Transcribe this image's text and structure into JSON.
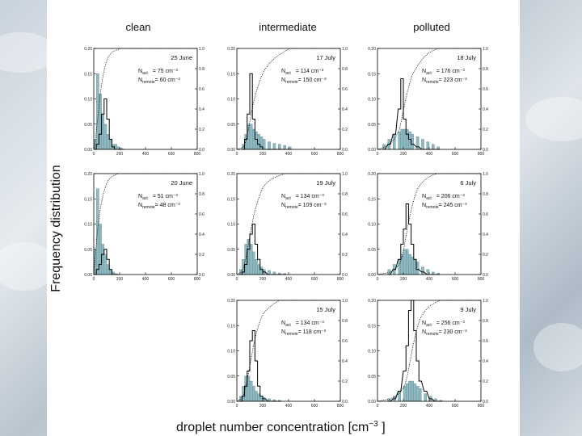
{
  "figure": {
    "y_axis_title": "Frequency distribution",
    "x_axis_title": "droplet number concentration [cm",
    "x_axis_title_exp": "−3",
    "x_axis_title_close": " ]",
    "column_titles": [
      "clean",
      "intermediate",
      "polluted"
    ]
  },
  "chart_data": [
    {
      "type": "bar",
      "panel": "clean-row1",
      "date": "25 June",
      "n_act": "= 75 cm⁻³",
      "n_remote": "= 60 cm⁻³",
      "x": [
        0,
        20,
        40,
        60,
        80,
        100,
        120,
        140,
        160,
        180,
        200,
        220
      ],
      "series": [
        {
          "name": "remote (shaded)",
          "values": [
            0.02,
            0.15,
            0.11,
            0.07,
            0.05,
            0.03,
            0.02,
            0.01,
            0.01,
            0.005,
            0.003,
            0.0
          ]
        },
        {
          "name": "activated (outline)",
          "values": [
            0.0,
            0.01,
            0.03,
            0.07,
            0.1,
            0.06,
            0.02,
            0.005,
            0.0,
            0.0,
            0.0,
            0.0
          ]
        },
        {
          "name": "cumulative",
          "values": [
            0.05,
            0.3,
            0.55,
            0.72,
            0.84,
            0.91,
            0.95,
            0.97,
            0.98,
            0.99,
            1.0,
            1.0
          ]
        }
      ],
      "xlim": [
        0,
        800
      ],
      "ylim": [
        0,
        0.2
      ],
      "y2lim": [
        0,
        1.0
      ],
      "xticks": [
        "0",
        "200",
        "400",
        "600",
        "800"
      ],
      "yticks": [
        "0.00",
        "0.05",
        "0.10",
        "0.15",
        "0.20"
      ],
      "y2ticks": [
        "0.0",
        "0.2",
        "0.4",
        "0.6",
        "0.8",
        "1.0"
      ]
    },
    {
      "type": "bar",
      "panel": "intermediate-row1",
      "date": "17 July",
      "n_act": "= 114 cm⁻³",
      "n_remote": "= 150 cm⁻³",
      "x": [
        40,
        60,
        80,
        100,
        120,
        140,
        160,
        180,
        200,
        240,
        280,
        320,
        360,
        400
      ],
      "series": [
        {
          "name": "remote (shaded)",
          "values": [
            0.01,
            0.03,
            0.05,
            0.05,
            0.04,
            0.035,
            0.03,
            0.025,
            0.02,
            0.015,
            0.012,
            0.01,
            0.008,
            0.005
          ]
        },
        {
          "name": "activated (outline)",
          "values": [
            0.0,
            0.02,
            0.07,
            0.15,
            0.06,
            0.02,
            0.01,
            0.005,
            0.0,
            0.0,
            0.0,
            0.0,
            0.0,
            0.0
          ]
        },
        {
          "name": "cumulative",
          "values": [
            0.02,
            0.08,
            0.2,
            0.35,
            0.47,
            0.57,
            0.65,
            0.72,
            0.78,
            0.85,
            0.9,
            0.94,
            0.97,
            1.0
          ]
        }
      ],
      "xlim": [
        0,
        800
      ],
      "ylim": [
        0,
        0.2
      ],
      "y2lim": [
        0,
        1.0
      ],
      "xticks": [
        "0",
        "200",
        "400",
        "600",
        "800"
      ],
      "yticks": [
        "0.00",
        "0.05",
        "0.10",
        "0.15",
        "0.20"
      ],
      "y2ticks": [
        "0.0",
        "0.2",
        "0.4",
        "0.6",
        "0.8",
        "1.0"
      ]
    },
    {
      "type": "bar",
      "panel": "polluted-row1",
      "date": "18 July",
      "n_act": "= 176 cm⁻³",
      "n_remote": "= 223 cm⁻³",
      "x": [
        40,
        80,
        120,
        160,
        180,
        200,
        220,
        240,
        260,
        300,
        340,
        380,
        420,
        460
      ],
      "series": [
        {
          "name": "remote (shaded)",
          "values": [
            0.01,
            0.02,
            0.03,
            0.035,
            0.04,
            0.04,
            0.04,
            0.035,
            0.03,
            0.025,
            0.02,
            0.015,
            0.01,
            0.005
          ]
        },
        {
          "name": "activated (outline)",
          "values": [
            0.0,
            0.01,
            0.03,
            0.08,
            0.14,
            0.06,
            0.03,
            0.02,
            0.01,
            0.005,
            0.0,
            0.0,
            0.0,
            0.0
          ]
        },
        {
          "name": "cumulative",
          "values": [
            0.02,
            0.05,
            0.1,
            0.2,
            0.32,
            0.45,
            0.56,
            0.66,
            0.74,
            0.83,
            0.9,
            0.95,
            0.98,
            1.0
          ]
        }
      ],
      "xlim": [
        0,
        800
      ],
      "ylim": [
        0,
        0.2
      ],
      "y2lim": [
        0,
        1.0
      ],
      "xticks": [
        "0",
        "200",
        "400",
        "600",
        "800"
      ],
      "yticks": [
        "0.00",
        "0.05",
        "0.10",
        "0.15",
        "0.20"
      ],
      "y2ticks": [
        "0.0",
        "0.2",
        "0.4",
        "0.6",
        "0.8",
        "1.0"
      ]
    },
    {
      "type": "bar",
      "panel": "clean-row2",
      "date": "20 June",
      "n_act": "= 51 cm⁻³",
      "n_remote": "= 48 cm⁻³",
      "x": [
        0,
        20,
        40,
        60,
        80,
        100,
        120,
        140,
        160,
        180
      ],
      "series": [
        {
          "name": "remote (shaded)",
          "values": [
            0.05,
            0.17,
            0.1,
            0.06,
            0.04,
            0.02,
            0.01,
            0.005,
            0.002,
            0.0
          ]
        },
        {
          "name": "activated (outline)",
          "values": [
            0.0,
            0.01,
            0.02,
            0.04,
            0.05,
            0.03,
            0.01,
            0.0,
            0.0,
            0.0
          ]
        },
        {
          "name": "cumulative",
          "values": [
            0.15,
            0.45,
            0.65,
            0.78,
            0.87,
            0.93,
            0.96,
            0.98,
            0.99,
            1.0
          ]
        }
      ],
      "xlim": [
        0,
        800
      ],
      "ylim": [
        0,
        0.2
      ],
      "y2lim": [
        0,
        1.0
      ],
      "xticks": [
        "0",
        "200",
        "400",
        "600",
        "800"
      ],
      "yticks": [
        "0.00",
        "0.05",
        "0.10",
        "0.15",
        "0.20"
      ],
      "y2ticks": [
        "0.0",
        "0.2",
        "0.4",
        "0.6",
        "0.8",
        "1.0"
      ]
    },
    {
      "type": "bar",
      "panel": "intermediate-row2",
      "date": "19 July",
      "n_act": "= 134 cm⁻³",
      "n_remote": "= 109 cm⁻³",
      "x": [
        20,
        40,
        60,
        80,
        100,
        120,
        140,
        160,
        180,
        200,
        240,
        280,
        320,
        360
      ],
      "series": [
        {
          "name": "remote (shaded)",
          "values": [
            0.01,
            0.03,
            0.06,
            0.07,
            0.06,
            0.045,
            0.03,
            0.02,
            0.015,
            0.01,
            0.008,
            0.005,
            0.003,
            0.002
          ]
        },
        {
          "name": "activated (outline)",
          "values": [
            0.0,
            0.005,
            0.02,
            0.05,
            0.08,
            0.1,
            0.06,
            0.03,
            0.01,
            0.005,
            0.0,
            0.0,
            0.0,
            0.0
          ]
        },
        {
          "name": "cumulative",
          "values": [
            0.02,
            0.06,
            0.16,
            0.3,
            0.45,
            0.58,
            0.68,
            0.76,
            0.83,
            0.88,
            0.93,
            0.96,
            0.98,
            1.0
          ]
        }
      ],
      "xlim": [
        0,
        800
      ],
      "ylim": [
        0,
        0.2
      ],
      "y2lim": [
        0,
        1.0
      ],
      "xticks": [
        "0",
        "200",
        "400",
        "600",
        "800"
      ],
      "yticks": [
        "0.00",
        "0.05",
        "0.10",
        "0.15",
        "0.20"
      ],
      "y2ticks": [
        "0.0",
        "0.2",
        "0.4",
        "0.6",
        "0.8",
        "1.0"
      ]
    },
    {
      "type": "bar",
      "panel": "polluted-row2",
      "date": "6 July",
      "n_act": "= 206 cm⁻³",
      "n_remote": "= 245 cm⁻³",
      "x": [
        80,
        120,
        160,
        180,
        200,
        220,
        240,
        260,
        280,
        300,
        340,
        380,
        420,
        460
      ],
      "series": [
        {
          "name": "remote (shaded)",
          "values": [
            0.01,
            0.02,
            0.03,
            0.04,
            0.05,
            0.05,
            0.04,
            0.035,
            0.03,
            0.025,
            0.015,
            0.01,
            0.005,
            0.003
          ]
        },
        {
          "name": "activated (outline)",
          "values": [
            0.0,
            0.01,
            0.03,
            0.06,
            0.09,
            0.14,
            0.1,
            0.06,
            0.03,
            0.01,
            0.005,
            0.0,
            0.0,
            0.0
          ]
        },
        {
          "name": "cumulative",
          "values": [
            0.02,
            0.05,
            0.1,
            0.18,
            0.3,
            0.45,
            0.58,
            0.69,
            0.78,
            0.85,
            0.92,
            0.96,
            0.99,
            1.0
          ]
        }
      ],
      "xlim": [
        0,
        800
      ],
      "ylim": [
        0,
        0.2
      ],
      "y2lim": [
        0,
        1.0
      ],
      "xticks": [
        "0",
        "200",
        "400",
        "600",
        "800"
      ],
      "yticks": [
        "0.00",
        "0.05",
        "0.10",
        "0.15",
        "0.20"
      ],
      "y2ticks": [
        "0.0",
        "0.2",
        "0.4",
        "0.6",
        "0.8",
        "1.0"
      ]
    },
    {
      "type": "bar",
      "panel": "intermediate-row3",
      "date": "15 July",
      "n_act": "= 134 cm⁻³",
      "n_remote": "= 118 cm⁻³",
      "x": [
        20,
        40,
        60,
        80,
        100,
        120,
        140,
        160,
        180,
        200,
        240,
        280,
        320
      ],
      "series": [
        {
          "name": "remote (shaded)",
          "values": [
            0.01,
            0.03,
            0.05,
            0.05,
            0.04,
            0.03,
            0.02,
            0.015,
            0.01,
            0.008,
            0.005,
            0.003,
            0.002
          ]
        },
        {
          "name": "activated (outline)",
          "values": [
            0.0,
            0.01,
            0.03,
            0.06,
            0.12,
            0.14,
            0.08,
            0.03,
            0.01,
            0.005,
            0.0,
            0.0,
            0.0
          ]
        },
        {
          "name": "cumulative",
          "values": [
            0.02,
            0.06,
            0.15,
            0.28,
            0.42,
            0.56,
            0.67,
            0.76,
            0.83,
            0.88,
            0.93,
            0.97,
            1.0
          ]
        }
      ],
      "xlim": [
        0,
        800
      ],
      "ylim": [
        0,
        0.2
      ],
      "y2lim": [
        0,
        1.0
      ],
      "xticks": [
        "0",
        "200",
        "400",
        "600",
        "800"
      ],
      "yticks": [
        "0.00",
        "0.05",
        "0.10",
        "0.15",
        "0.20"
      ],
      "y2ticks": [
        "0.0",
        "0.2",
        "0.4",
        "0.6",
        "0.8",
        "1.0"
      ]
    },
    {
      "type": "bar",
      "panel": "polluted-row3",
      "date": "9 July",
      "n_act": "= 256 cm⁻³",
      "n_remote": "= 230 cm⁻³",
      "x": [
        80,
        120,
        160,
        200,
        220,
        240,
        260,
        280,
        300,
        320,
        360,
        400,
        440,
        480
      ],
      "series": [
        {
          "name": "remote (shaded)",
          "values": [
            0.005,
            0.01,
            0.02,
            0.03,
            0.035,
            0.04,
            0.04,
            0.035,
            0.03,
            0.025,
            0.015,
            0.01,
            0.005,
            0.002
          ]
        },
        {
          "name": "activated (outline)",
          "values": [
            0.0,
            0.005,
            0.02,
            0.06,
            0.11,
            0.18,
            0.2,
            0.14,
            0.08,
            0.04,
            0.02,
            0.005,
            0.0,
            0.0
          ]
        },
        {
          "name": "cumulative",
          "values": [
            0.02,
            0.04,
            0.08,
            0.15,
            0.25,
            0.38,
            0.52,
            0.64,
            0.74,
            0.82,
            0.9,
            0.95,
            0.98,
            1.0
          ]
        }
      ],
      "xlim": [
        0,
        800
      ],
      "ylim": [
        0,
        0.2
      ],
      "y2lim": [
        0,
        1.0
      ],
      "xticks": [
        "0",
        "200",
        "400",
        "600",
        "800"
      ],
      "yticks": [
        "0.00",
        "0.05",
        "0.10",
        "0.15",
        "0.20"
      ],
      "y2ticks": [
        "0.0",
        "0.2",
        "0.4",
        "0.6",
        "0.8",
        "1.0"
      ]
    }
  ],
  "colors": {
    "fill": "#8fb9c1",
    "line": "#000000",
    "background": "#ffffff"
  }
}
